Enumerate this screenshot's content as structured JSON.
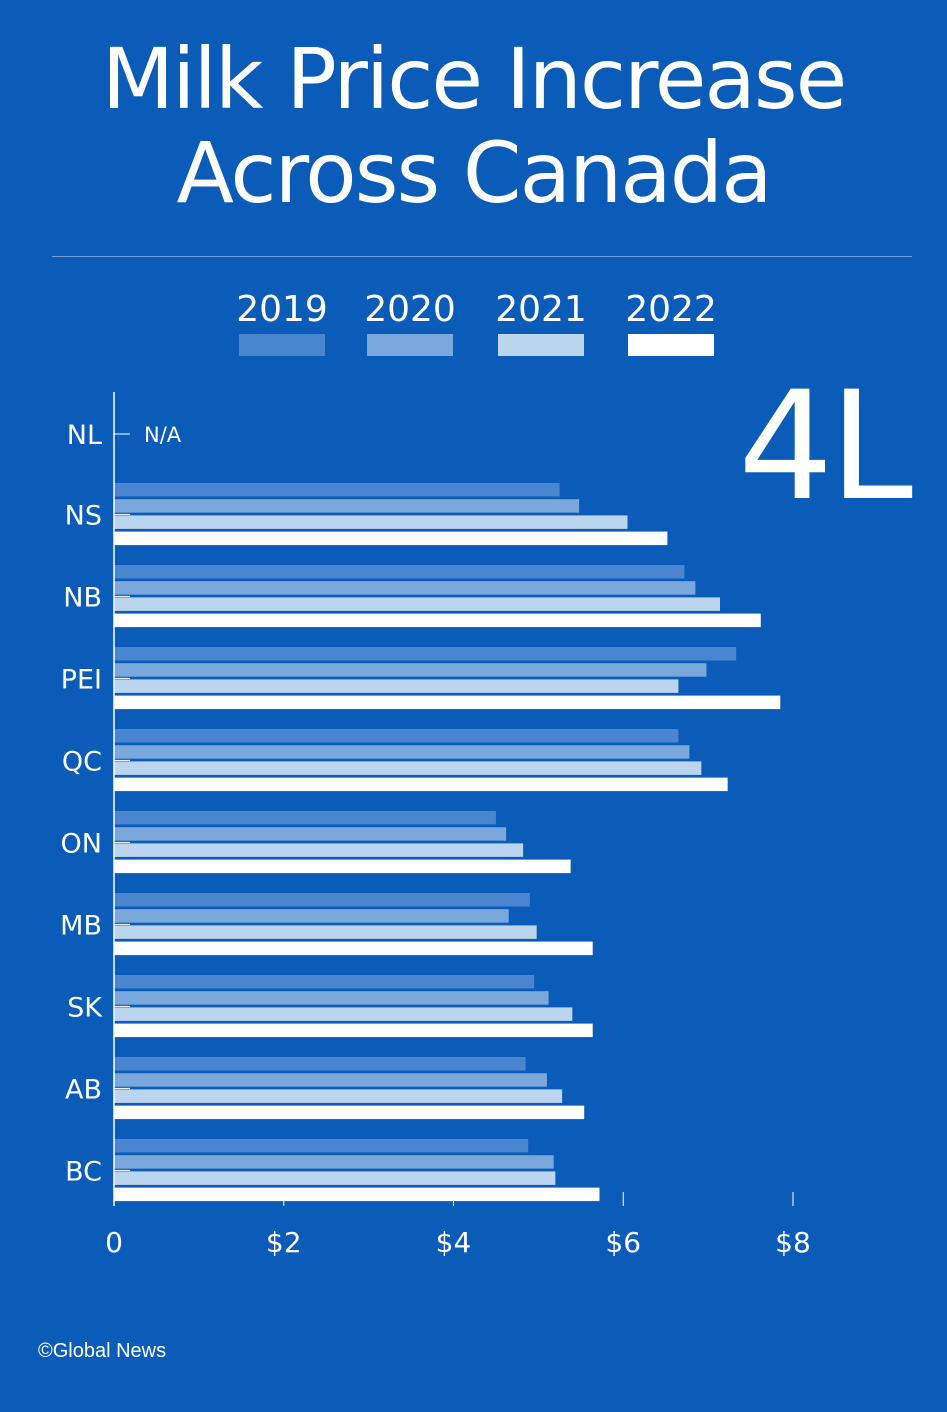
{
  "title_line1": "Milk Price Increase",
  "title_line2": "Across Canada",
  "unit_label": "4L",
  "source": "©Global News",
  "colors": {
    "background": "#0a5cb8",
    "2019": "#4a86cf",
    "2020": "#7aa8dd",
    "2021": "#bcd5ef",
    "2022": "#ffffff"
  },
  "chart_data": {
    "type": "bar",
    "orientation": "horizontal",
    "categories": [
      "NL",
      "NS",
      "NB",
      "PEI",
      "QC",
      "ON",
      "MB",
      "SK",
      "AB",
      "BC"
    ],
    "series": [
      {
        "name": "2019",
        "values": [
          null,
          5.25,
          6.72,
          7.33,
          6.65,
          4.5,
          4.9,
          4.95,
          4.85,
          4.88
        ]
      },
      {
        "name": "2020",
        "values": [
          null,
          5.48,
          6.85,
          6.98,
          6.78,
          4.62,
          4.65,
          5.12,
          5.1,
          5.18
        ]
      },
      {
        "name": "2021",
        "values": [
          null,
          6.05,
          7.14,
          6.65,
          6.92,
          4.82,
          4.98,
          5.4,
          5.28,
          5.2
        ]
      },
      {
        "name": "2022",
        "values": [
          null,
          6.52,
          7.62,
          7.85,
          7.23,
          5.38,
          5.64,
          5.64,
          5.54,
          5.72
        ]
      }
    ],
    "na_label": "N/A",
    "xlim": [
      0,
      8
    ],
    "xticks": [
      "0",
      "$2",
      "$4",
      "$6",
      "$8"
    ],
    "xtick_values": [
      0,
      2,
      4,
      6,
      8
    ],
    "legend_position": "top"
  }
}
